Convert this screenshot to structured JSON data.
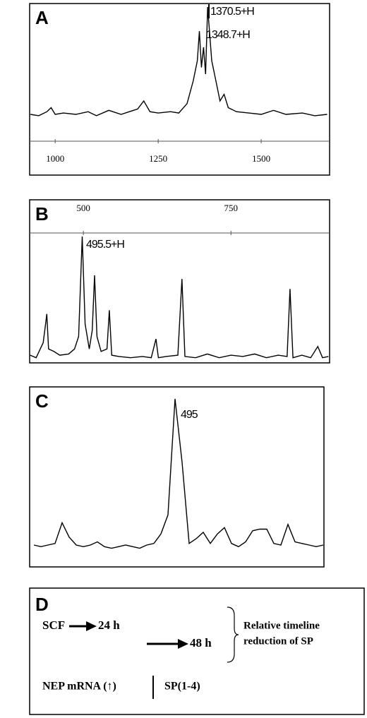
{
  "chart_data": [
    {
      "type": "line",
      "panel_label": "A",
      "color": "#000000",
      "x": [
        940,
        960,
        980,
        990,
        1000,
        1020,
        1050,
        1080,
        1100,
        1130,
        1160,
        1180,
        1200,
        1215,
        1230,
        1250,
        1280,
        1300,
        1320,
        1335,
        1345,
        1350,
        1355,
        1360,
        1365,
        1370,
        1375,
        1380,
        1390,
        1400,
        1410,
        1420,
        1440,
        1470,
        1500,
        1530,
        1560,
        1600,
        1630,
        1660
      ],
      "values": [
        20,
        19,
        22,
        25,
        20,
        21,
        20,
        22,
        19,
        23,
        20,
        22,
        24,
        30,
        22,
        21,
        22,
        21,
        28,
        45,
        60,
        82,
        55,
        70,
        50,
        100,
        80,
        60,
        45,
        30,
        35,
        25,
        22,
        21,
        20,
        23,
        20,
        21,
        19,
        20
      ],
      "xlim": [
        938,
        1666
      ],
      "xticks": [
        1000,
        1250,
        1500
      ],
      "ylim": [
        0,
        100
      ],
      "annotations": [
        "1370.5+H",
        "1348.7+H"
      ]
    },
    {
      "type": "line",
      "panel_label": "B",
      "color": "#000000",
      "x": [
        410,
        420,
        432,
        436,
        438,
        441,
        450,
        460,
        475,
        485,
        492,
        498,
        503,
        510,
        515,
        519,
        523,
        530,
        540,
        544,
        548,
        560,
        580,
        600,
        615,
        623,
        627,
        640,
        660,
        667,
        672,
        690,
        710,
        730,
        750,
        770,
        790,
        810,
        830,
        845,
        850,
        855,
        870,
        885,
        897,
        905,
        915
      ],
      "values": [
        5,
        3,
        15,
        30,
        38,
        10,
        8,
        5,
        6,
        10,
        20,
        100,
        30,
        10,
        25,
        69,
        20,
        8,
        10,
        41,
        5,
        4,
        3,
        4,
        3,
        18,
        3,
        4,
        5,
        66,
        4,
        3,
        6,
        3,
        5,
        4,
        6,
        3,
        5,
        4,
        58,
        3,
        5,
        3,
        12,
        3,
        4
      ],
      "xlim": [
        409,
        917
      ],
      "xticks": [
        500,
        750
      ],
      "ylim": [
        0,
        100
      ],
      "annotations": [
        "495.5+H"
      ]
    },
    {
      "type": "line",
      "panel_label": "C",
      "color": "#000000",
      "values": [
        8,
        7,
        8,
        9,
        22,
        13,
        8,
        7,
        8,
        10,
        7,
        6,
        7,
        8,
        7,
        6,
        8,
        9,
        15,
        27,
        100,
        60,
        9,
        12,
        16,
        9,
        15,
        19,
        9,
        7,
        10,
        17,
        18,
        18,
        9,
        8,
        21,
        10,
        9,
        8,
        7,
        8
      ],
      "ylim": [
        0,
        100
      ],
      "annotations": [
        "495"
      ]
    }
  ],
  "diagram": {
    "panel_label": "D",
    "start": "SCF",
    "step1": "24 h",
    "step2": "48 h",
    "note_line1": "Relative timeline",
    "note_line2": "reduction of SP",
    "left_bottom": "NEP mRNA (↑)",
    "right_bottom": "SP(1-4)"
  }
}
